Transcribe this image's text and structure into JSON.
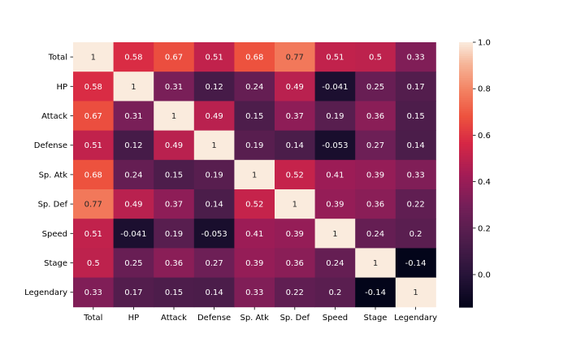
{
  "chart_data": {
    "type": "heatmap",
    "title": "",
    "xlabel": "",
    "ylabel": "",
    "x_categories": [
      "Total",
      "HP",
      "Attack",
      "Defense",
      "Sp. Atk",
      "Sp. Def",
      "Speed",
      "Stage",
      "Legendary"
    ],
    "y_categories": [
      "Total",
      "HP",
      "Attack",
      "Defense",
      "Sp. Atk",
      "Sp. Def",
      "Speed",
      "Stage",
      "Legendary"
    ],
    "values": [
      [
        1,
        0.58,
        0.67,
        0.51,
        0.68,
        0.77,
        0.51,
        0.5,
        0.33
      ],
      [
        0.58,
        1,
        0.31,
        0.12,
        0.24,
        0.49,
        -0.041,
        0.25,
        0.17
      ],
      [
        0.67,
        0.31,
        1,
        0.49,
        0.15,
        0.37,
        0.19,
        0.36,
        0.15
      ],
      [
        0.51,
        0.12,
        0.49,
        1,
        0.19,
        0.14,
        -0.053,
        0.27,
        0.14
      ],
      [
        0.68,
        0.24,
        0.15,
        0.19,
        1,
        0.52,
        0.41,
        0.39,
        0.33
      ],
      [
        0.77,
        0.49,
        0.37,
        0.14,
        0.52,
        1,
        0.39,
        0.36,
        0.22
      ],
      [
        0.51,
        -0.041,
        0.19,
        -0.053,
        0.41,
        0.39,
        1,
        0.24,
        0.2
      ],
      [
        0.5,
        0.25,
        0.36,
        0.27,
        0.39,
        0.36,
        0.24,
        1,
        -0.14
      ],
      [
        0.33,
        0.17,
        0.15,
        0.14,
        0.33,
        0.22,
        0.2,
        -0.14,
        1
      ]
    ],
    "annotations": [
      [
        "1",
        "0.58",
        "0.67",
        "0.51",
        "0.68",
        "0.77",
        "0.51",
        "0.5",
        "0.33"
      ],
      [
        "0.58",
        "1",
        "0.31",
        "0.12",
        "0.24",
        "0.49",
        "-0.041",
        "0.25",
        "0.17"
      ],
      [
        "0.67",
        "0.31",
        "1",
        "0.49",
        "0.15",
        "0.37",
        "0.19",
        "0.36",
        "0.15"
      ],
      [
        "0.51",
        "0.12",
        "0.49",
        "1",
        "0.19",
        "0.14",
        "-0.053",
        "0.27",
        "0.14"
      ],
      [
        "0.68",
        "0.24",
        "0.15",
        "0.19",
        "1",
        "0.52",
        "0.41",
        "0.39",
        "0.33"
      ],
      [
        "0.77",
        "0.49",
        "0.37",
        "0.14",
        "0.52",
        "1",
        "0.39",
        "0.36",
        "0.22"
      ],
      [
        "0.51",
        "-0.041",
        "0.19",
        "-0.053",
        "0.41",
        "0.39",
        "1",
        "0.24",
        "0.2"
      ],
      [
        "0.5",
        "0.25",
        "0.36",
        "0.27",
        "0.39",
        "0.36",
        "0.24",
        "1",
        "-0.14"
      ],
      [
        "0.33",
        "0.17",
        "0.15",
        "0.14",
        "0.33",
        "0.22",
        "0.2",
        "-0.14",
        "1"
      ]
    ],
    "colorbar": {
      "range": [
        -0.14,
        1.0
      ],
      "ticks": [
        0.0,
        0.2,
        0.4,
        0.6,
        0.8,
        1.0
      ],
      "tick_labels": [
        "0.0",
        "0.2",
        "0.4",
        "0.6",
        "0.8",
        "1.0"
      ]
    },
    "colormap": "rocket",
    "grid": false,
    "legend": "colorbar-right"
  }
}
